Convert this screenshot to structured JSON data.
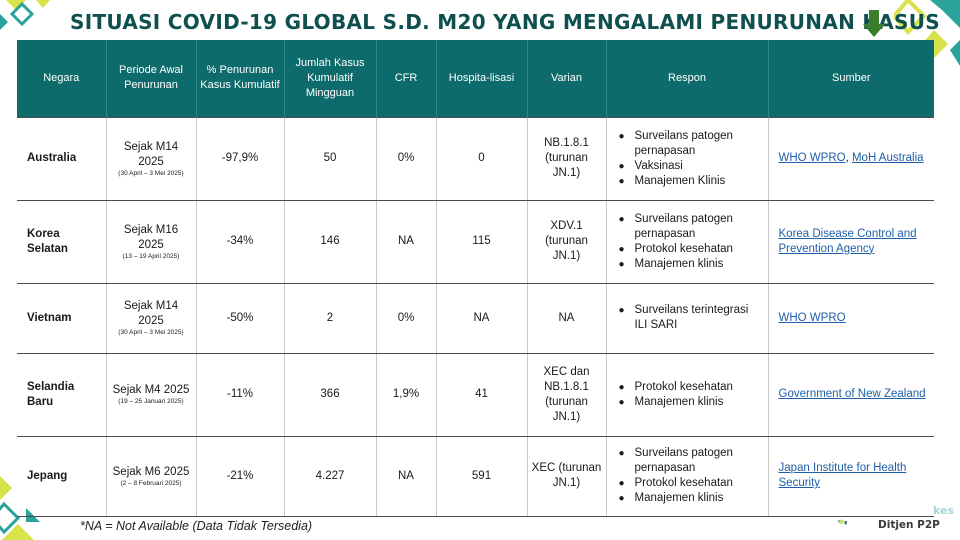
{
  "title": "SITUASI COVID-19 GLOBAL S.D. M20 YANG MENGALAMI PENURUNAN KASUS",
  "icons": {
    "trend": "arrow-down-icon",
    "bullet": "bullet-icon"
  },
  "colors": {
    "header_bg": "#0e6b6b",
    "title": "#0e4f4f",
    "arrow": "#3a7d2a",
    "link": "#1f5fa8",
    "accent_yellow": "#d8e24a",
    "accent_teal": "#2aa39a"
  },
  "table": {
    "headers": {
      "negara": "Negara",
      "periode": "Periode Awal Penurunan",
      "penurunan": "% Penurunan Kasus Kumulatif",
      "jumlah": "Jumlah Kasus Kumulatif Mingguan",
      "cfr": "CFR",
      "hospitalisasi": "Hospita-lisasi",
      "varian": "Varian",
      "respon": "Respon",
      "sumber": "Sumber"
    },
    "rows": [
      {
        "negara": "Australia",
        "periode": "Sejak M14 2025",
        "periode_detail": "(30 April – 3 Mei 2025)",
        "penurunan": "-97,9%",
        "jumlah": "50",
        "cfr": "0%",
        "hospitalisasi": "0",
        "varian": "NB.1.8.1 (turunan JN.1)",
        "respon": [
          "Surveilans patogen pernapasan",
          "Vaksinasi",
          "Manajemen Klinis"
        ],
        "sumber": [
          "WHO WPRO",
          "MoH Australia"
        ],
        "sumber_sep": ", "
      },
      {
        "negara": "Korea Selatan",
        "periode": "Sejak M16 2025",
        "periode_detail": "(13 – 19 April 2025)",
        "penurunan": "-34%",
        "jumlah": "146",
        "cfr": "NA",
        "hospitalisasi": "115",
        "varian": "XDV.1 (turunan JN.1)",
        "respon": [
          "Surveilans patogen pernapasan",
          "Protokol kesehatan",
          "Manajemen klinis"
        ],
        "sumber": [
          "Korea Disease Control and Prevention Agency"
        ]
      },
      {
        "negara": "Vietnam",
        "periode": "Sejak M14 2025",
        "periode_detail": "(30 April – 3 Mei 2025)",
        "penurunan": "-50%",
        "jumlah": "2",
        "cfr": "0%",
        "hospitalisasi": "NA",
        "varian": "NA",
        "respon": [
          "Surveilans terintegrasi ILI SARI"
        ],
        "sumber": [
          "WHO WPRO"
        ]
      },
      {
        "negara": "Selandia Baru",
        "periode": "Sejak M4 2025",
        "periode_detail": "(19 – 25 Januari 2025)",
        "penurunan": "-11%",
        "jumlah": "366",
        "cfr": "1,9%",
        "hospitalisasi": "41",
        "varian": "XEC dan NB.1.8.1 (turunan JN.1)",
        "respon": [
          "Protokol kesehatan",
          "Manajemen klinis"
        ],
        "sumber": [
          "Government of New Zealand"
        ]
      },
      {
        "negara": "Jepang",
        "periode": "Sejak M6 2025",
        "periode_detail": "(2 – 8 Februari 2025)",
        "penurunan": "-21%",
        "jumlah": "4.227",
        "cfr": "NA",
        "hospitalisasi": "591",
        "varian": "XEC (turunan JN.1)",
        "respon": [
          "Surveilans patogen pernapasan",
          "Protokol kesehatan",
          "Manajemen klinis"
        ],
        "sumber": [
          "Japan Institute for Health Security"
        ]
      }
    ]
  },
  "footnote": "*NA = Not Available (Data Tidak Tersedia)",
  "logo": {
    "name": "Ditjen P2P",
    "tag": "kes"
  }
}
